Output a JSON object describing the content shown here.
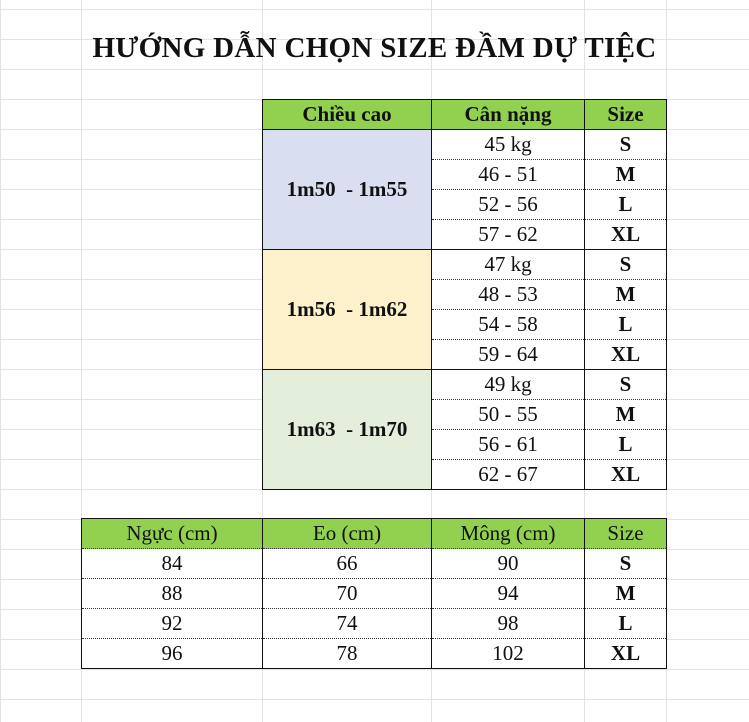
{
  "title": "HƯỚNG DẪN CHỌN SIZE ĐẦM DỰ TIỆC",
  "colors": {
    "header": "#92d050",
    "group1": "#d9dff1",
    "group2": "#fdf1cb",
    "group3": "#e3eedb"
  },
  "height_table": {
    "headers": [
      "Chiều cao",
      "Cân nặng",
      "Size"
    ],
    "groups": [
      {
        "height": "1m50  - 1m55",
        "rows": [
          {
            "weight": "45 kg",
            "size": "S"
          },
          {
            "weight": "46 - 51",
            "size": "M"
          },
          {
            "weight": "52 - 56",
            "size": "L"
          },
          {
            "weight": "57 - 62",
            "size": "XL"
          }
        ]
      },
      {
        "height": "1m56  - 1m62",
        "rows": [
          {
            "weight": "47 kg",
            "size": "S"
          },
          {
            "weight": "48 - 53",
            "size": "M"
          },
          {
            "weight": "54 - 58",
            "size": "L"
          },
          {
            "weight": "59 - 64",
            "size": "XL"
          }
        ]
      },
      {
        "height": "1m63  - 1m70",
        "rows": [
          {
            "weight": "49 kg",
            "size": "S"
          },
          {
            "weight": "50 - 55",
            "size": "M"
          },
          {
            "weight": "56 - 61",
            "size": "L"
          },
          {
            "weight": "62 - 67",
            "size": "XL"
          }
        ]
      }
    ]
  },
  "measure_table": {
    "headers": [
      "Ngực (cm)",
      "Eo (cm)",
      "Mông (cm)",
      "Size"
    ],
    "rows": [
      [
        "84",
        "66",
        "90",
        "S"
      ],
      [
        "88",
        "70",
        "94",
        "M"
      ],
      [
        "92",
        "74",
        "98",
        "L"
      ],
      [
        "96",
        "78",
        "102",
        "XL"
      ]
    ]
  }
}
